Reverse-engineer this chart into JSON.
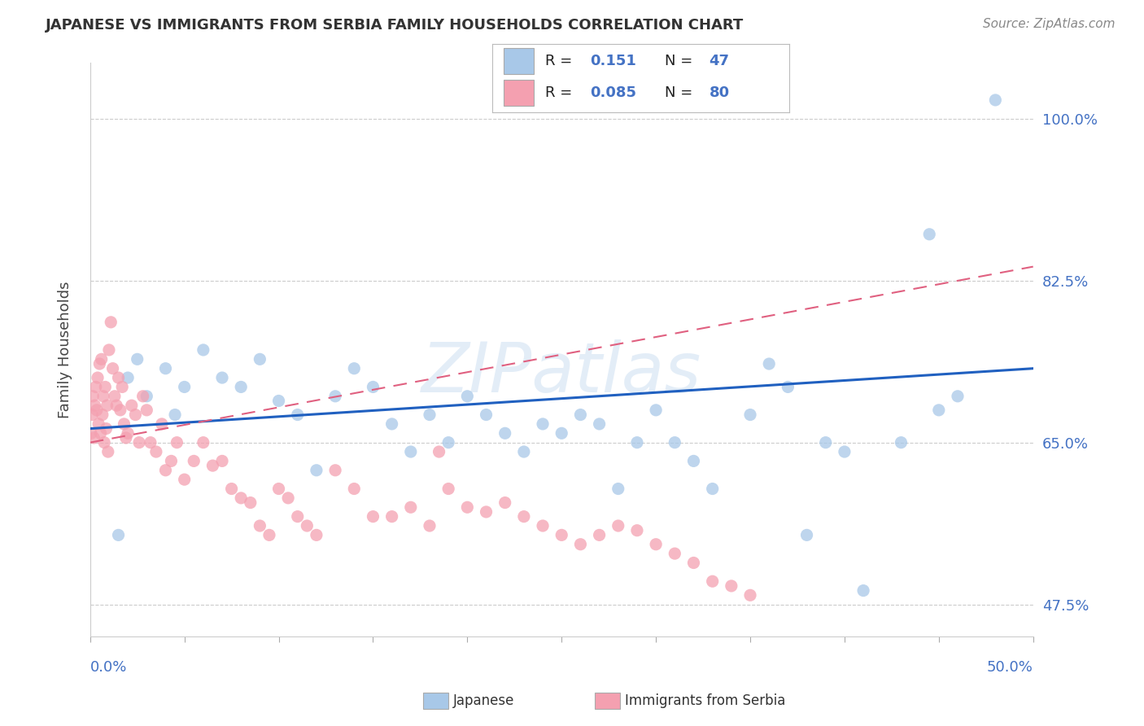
{
  "title": "JAPANESE VS IMMIGRANTS FROM SERBIA FAMILY HOUSEHOLDS CORRELATION CHART",
  "source_text": "Source: ZipAtlas.com",
  "ylabel": "Family Households",
  "xlim": [
    0.0,
    50.0
  ],
  "ylim": [
    44.0,
    106.0
  ],
  "yticks": [
    47.5,
    65.0,
    82.5,
    100.0
  ],
  "ytick_labels": [
    "47.5%",
    "65.0%",
    "82.5%",
    "100.0%"
  ],
  "watermark": "ZIPatlas",
  "color_blue": "#A8C8E8",
  "color_pink": "#F4A0B0",
  "color_blue_line": "#2060C0",
  "color_pink_line": "#E06080",
  "background_color": "#FFFFFF",
  "grid_color": "#DDDDDD",
  "blue_x": [
    1.5,
    2.0,
    2.5,
    3.0,
    4.0,
    4.5,
    5.0,
    6.0,
    7.0,
    8.0,
    9.0,
    10.0,
    11.0,
    12.0,
    13.0,
    14.0,
    15.0,
    16.0,
    17.0,
    18.0,
    19.0,
    20.0,
    21.0,
    22.0,
    23.0,
    24.0,
    25.0,
    26.0,
    27.0,
    28.0,
    29.0,
    30.0,
    31.0,
    32.0,
    33.0,
    35.0,
    36.0,
    37.0,
    38.0,
    39.0,
    40.0,
    41.0,
    43.0,
    44.5,
    45.0,
    46.0,
    48.0
  ],
  "blue_y": [
    55.0,
    72.0,
    74.0,
    70.0,
    73.0,
    68.0,
    71.0,
    75.0,
    72.0,
    71.0,
    74.0,
    69.5,
    68.0,
    62.0,
    70.0,
    73.0,
    71.0,
    67.0,
    64.0,
    68.0,
    65.0,
    70.0,
    68.0,
    66.0,
    64.0,
    67.0,
    66.0,
    68.0,
    67.0,
    60.0,
    65.0,
    68.5,
    65.0,
    63.0,
    60.0,
    68.0,
    73.5,
    71.0,
    55.0,
    65.0,
    64.0,
    49.0,
    65.0,
    87.5,
    68.5,
    70.0,
    102.0
  ],
  "pink_x": [
    0.05,
    0.1,
    0.15,
    0.2,
    0.25,
    0.3,
    0.35,
    0.4,
    0.45,
    0.5,
    0.55,
    0.6,
    0.65,
    0.7,
    0.75,
    0.8,
    0.85,
    0.9,
    0.95,
    1.0,
    1.1,
    1.2,
    1.3,
    1.4,
    1.5,
    1.6,
    1.7,
    1.8,
    1.9,
    2.0,
    2.2,
    2.4,
    2.6,
    2.8,
    3.0,
    3.2,
    3.5,
    3.8,
    4.0,
    4.3,
    4.6,
    5.0,
    5.5,
    6.0,
    6.5,
    7.0,
    7.5,
    8.0,
    8.5,
    9.0,
    9.5,
    10.0,
    10.5,
    11.0,
    11.5,
    12.0,
    13.0,
    14.0,
    15.0,
    16.0,
    17.0,
    18.0,
    18.5,
    19.0,
    20.0,
    21.0,
    22.0,
    23.0,
    24.0,
    25.0,
    26.0,
    27.0,
    28.0,
    29.0,
    30.0,
    31.0,
    32.0,
    33.0,
    34.0,
    35.0
  ],
  "pink_y": [
    66.0,
    68.0,
    70.0,
    65.5,
    69.0,
    71.0,
    68.5,
    72.0,
    67.0,
    73.5,
    66.0,
    74.0,
    68.0,
    70.0,
    65.0,
    71.0,
    66.5,
    69.0,
    64.0,
    75.0,
    78.0,
    73.0,
    70.0,
    69.0,
    72.0,
    68.5,
    71.0,
    67.0,
    65.5,
    66.0,
    69.0,
    68.0,
    65.0,
    70.0,
    68.5,
    65.0,
    64.0,
    67.0,
    62.0,
    63.0,
    65.0,
    61.0,
    63.0,
    65.0,
    62.5,
    63.0,
    60.0,
    59.0,
    58.5,
    56.0,
    55.0,
    60.0,
    59.0,
    57.0,
    56.0,
    55.0,
    62.0,
    60.0,
    57.0,
    57.0,
    58.0,
    56.0,
    64.0,
    60.0,
    58.0,
    57.5,
    58.5,
    57.0,
    56.0,
    55.0,
    54.0,
    55.0,
    56.0,
    55.5,
    54.0,
    53.0,
    52.0,
    50.0,
    49.5,
    48.5
  ]
}
